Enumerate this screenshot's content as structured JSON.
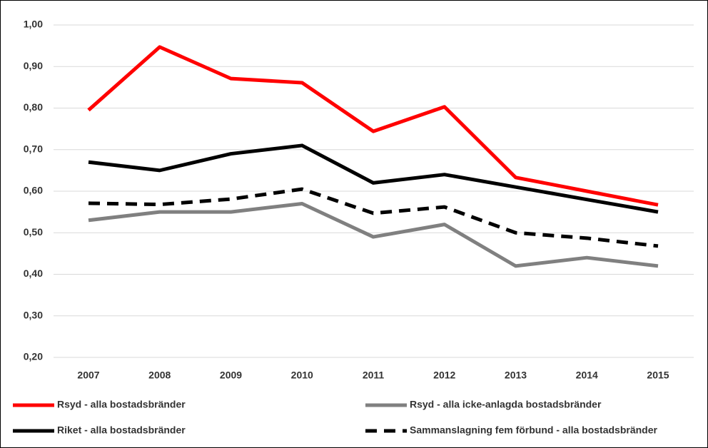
{
  "chart_data": {
    "type": "line",
    "categories": [
      "2007",
      "2008",
      "2009",
      "2010",
      "2011",
      "2012",
      "2013",
      "2014",
      "2015"
    ],
    "series": [
      {
        "name": "Rsyd - alla bostadsbränder",
        "color": "#ff0000",
        "values": [
          0.795,
          0.947,
          0.871,
          0.861,
          0.744,
          0.803,
          0.633,
          0.6,
          0.567
        ]
      },
      {
        "name": "Rsyd - alla icke-anlagda bostadsbränder",
        "color": "#808080",
        "values": [
          0.53,
          0.55,
          0.55,
          0.57,
          0.49,
          0.52,
          0.42,
          0.44,
          0.42
        ]
      },
      {
        "name": "Riket - alla bostadsbränder",
        "color": "#000000",
        "values": [
          0.67,
          0.65,
          0.69,
          0.71,
          0.62,
          0.64,
          0.61,
          0.58,
          0.55
        ]
      },
      {
        "name": "Sammanslagning fem förbund - alla bostadsbränder",
        "color": "#000000",
        "dashed": true,
        "values": [
          0.571,
          0.568,
          0.581,
          0.605,
          0.547,
          0.562,
          0.5,
          0.487,
          0.468
        ]
      }
    ],
    "ylim": [
      0.2,
      1.0
    ],
    "yticks": [
      {
        "value": 0.2,
        "label": "0,20"
      },
      {
        "value": 0.3,
        "label": "0,30"
      },
      {
        "value": 0.4,
        "label": "0,40"
      },
      {
        "value": 0.5,
        "label": "0,50"
      },
      {
        "value": 0.6,
        "label": "0,60"
      },
      {
        "value": 0.7,
        "label": "0,70"
      },
      {
        "value": 0.8,
        "label": "0,80"
      },
      {
        "value": 0.9,
        "label": "0,90"
      },
      {
        "value": 1.0,
        "label": "1,00"
      }
    ],
    "grid": true,
    "legend": "bottom"
  }
}
